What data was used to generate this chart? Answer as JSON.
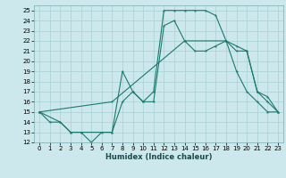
{
  "xlabel": "Humidex (Indice chaleur)",
  "bg_color": "#cce8ec",
  "line_color": "#1a7a6e",
  "grid_color": "#a8d0d4",
  "xlim": [
    -0.5,
    23.5
  ],
  "ylim": [
    12,
    25.5
  ],
  "xticks": [
    0,
    1,
    2,
    3,
    4,
    5,
    6,
    7,
    8,
    9,
    10,
    11,
    12,
    13,
    14,
    15,
    16,
    17,
    18,
    19,
    20,
    21,
    22,
    23
  ],
  "yticks": [
    12,
    13,
    14,
    15,
    16,
    17,
    18,
    19,
    20,
    21,
    22,
    23,
    24,
    25
  ],
  "line1_x": [
    0,
    1,
    2,
    3,
    4,
    5,
    6,
    7,
    8,
    9,
    10,
    11,
    12,
    13,
    14,
    15,
    16,
    17,
    18,
    19,
    20,
    21,
    22,
    23
  ],
  "line1_y": [
    15,
    14,
    14,
    13,
    13,
    12,
    13,
    13,
    19,
    17,
    16,
    17,
    25,
    25,
    25,
    25,
    25,
    24.5,
    22,
    19,
    17,
    16,
    15,
    15
  ],
  "line2_x": [
    0,
    2,
    3,
    4,
    7,
    8,
    9,
    10,
    11,
    12,
    13,
    14,
    15,
    16,
    17,
    18,
    19,
    20,
    21,
    22,
    23
  ],
  "line2_y": [
    15,
    14,
    13,
    13,
    13,
    16,
    17,
    16,
    16,
    23.5,
    24,
    22,
    21,
    21,
    21.5,
    22,
    21.5,
    21,
    17,
    16.5,
    15
  ],
  "line3_x": [
    0,
    7,
    14,
    18,
    19,
    20,
    21,
    22,
    23
  ],
  "line3_y": [
    15,
    16,
    22,
    22,
    21,
    21,
    17,
    16,
    15
  ]
}
